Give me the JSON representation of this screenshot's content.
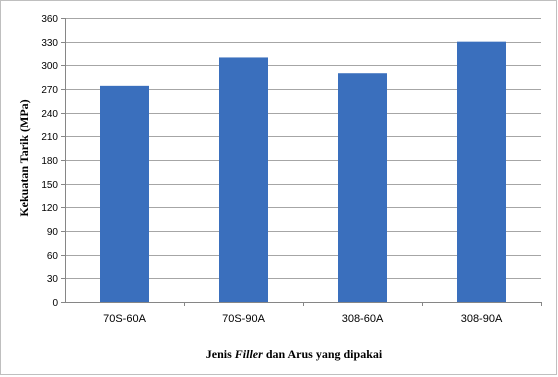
{
  "chart_data": {
    "type": "bar",
    "title": "",
    "xlabel": {
      "prefix": "Jenis ",
      "emphasis": "Filler",
      "suffix": " dan Arus  yang dipakai"
    },
    "ylabel": "Kekuatan Tarik (MPa)",
    "categories": [
      "70S-60A",
      "70S-90A",
      "308-60A",
      "308-90A"
    ],
    "values": [
      274,
      310,
      290,
      330
    ],
    "ylim": [
      0,
      360
    ],
    "yticks": [
      0,
      30,
      60,
      90,
      120,
      150,
      180,
      210,
      240,
      270,
      300,
      330,
      360
    ],
    "grid": true,
    "legend": "none",
    "bar_color": "#3a6fbd",
    "grid_color": "#a6a6a6",
    "axis_color": "#868686"
  }
}
